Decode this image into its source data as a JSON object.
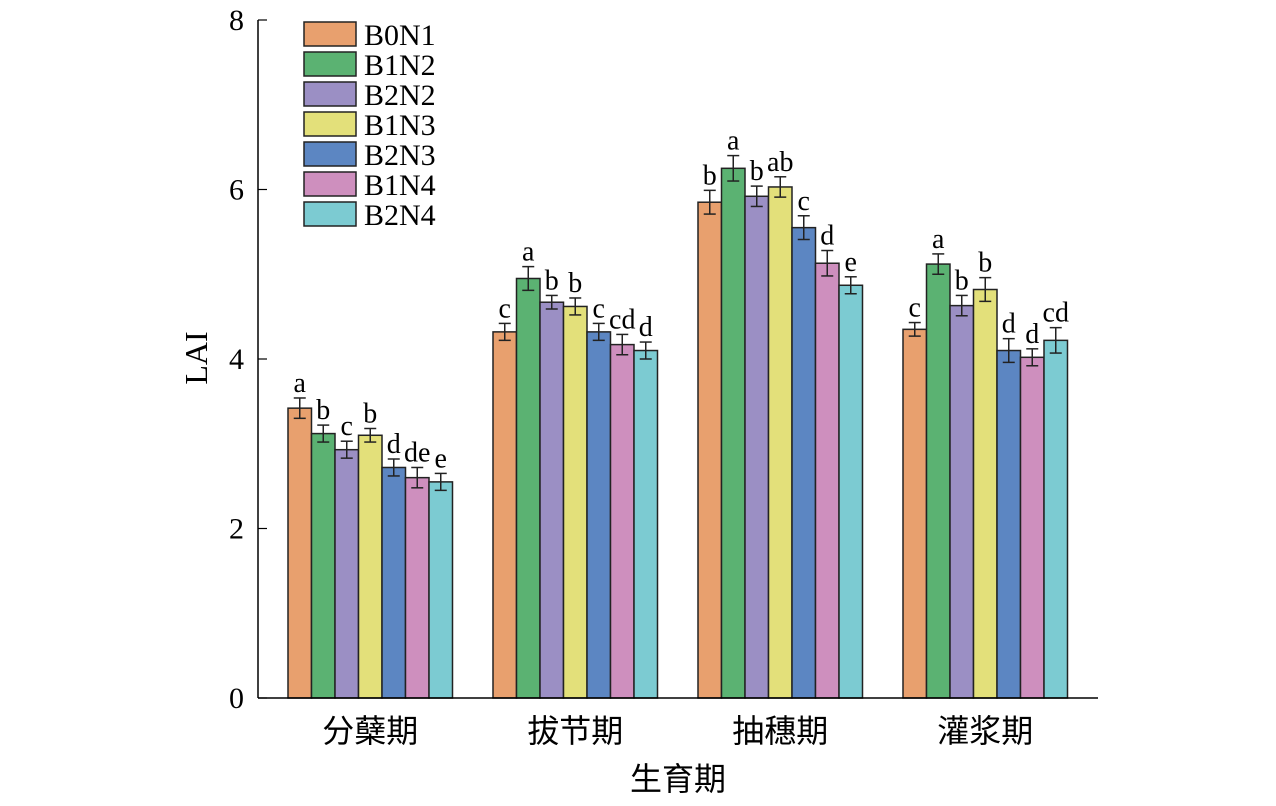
{
  "chart_data": {
    "type": "bar",
    "title": "",
    "xlabel": "生育期",
    "ylabel": "LAI",
    "ylim": [
      0,
      8
    ],
    "yticks": [
      0,
      2,
      4,
      6,
      8
    ],
    "grid": false,
    "legend_position": "top-left",
    "categories": [
      "分蘖期",
      "拔节期",
      "抽穗期",
      "灌浆期"
    ],
    "series": [
      {
        "name": "B0N1",
        "color": "#E8A06E",
        "values": [
          3.42,
          4.32,
          5.85,
          4.35
        ],
        "errors": [
          0.12,
          0.1,
          0.14,
          0.08
        ],
        "labels": [
          "a",
          "c",
          "b",
          "c"
        ]
      },
      {
        "name": "B1N2",
        "color": "#5BB272",
        "values": [
          3.12,
          4.95,
          6.25,
          5.12
        ],
        "errors": [
          0.1,
          0.14,
          0.15,
          0.12
        ],
        "labels": [
          "b",
          "a",
          "a",
          "a"
        ]
      },
      {
        "name": "B2N2",
        "color": "#9B8FC4",
        "values": [
          2.93,
          4.67,
          5.92,
          4.63
        ],
        "errors": [
          0.1,
          0.08,
          0.12,
          0.12
        ],
        "labels": [
          "c",
          "b",
          "b",
          "b"
        ]
      },
      {
        "name": "B1N3",
        "color": "#E3E07A",
        "values": [
          3.1,
          4.62,
          6.03,
          4.82
        ],
        "errors": [
          0.08,
          0.1,
          0.12,
          0.14
        ],
        "labels": [
          "b",
          "b",
          "ab",
          "b"
        ]
      },
      {
        "name": "B2N3",
        "color": "#5C86C2",
        "values": [
          2.72,
          4.32,
          5.55,
          4.1
        ],
        "errors": [
          0.1,
          0.1,
          0.14,
          0.14
        ],
        "labels": [
          "d",
          "c",
          "c",
          "d"
        ]
      },
      {
        "name": "B1N4",
        "color": "#CE8FBE",
        "values": [
          2.6,
          4.17,
          5.13,
          4.02
        ],
        "errors": [
          0.12,
          0.12,
          0.15,
          0.1
        ],
        "labels": [
          "de",
          "cd",
          "d",
          "d"
        ]
      },
      {
        "name": "B2N4",
        "color": "#7CCBD2",
        "values": [
          2.55,
          4.1,
          4.87,
          4.22
        ],
        "errors": [
          0.1,
          0.1,
          0.1,
          0.15
        ],
        "labels": [
          "e",
          "d",
          "e",
          "cd"
        ]
      }
    ]
  }
}
